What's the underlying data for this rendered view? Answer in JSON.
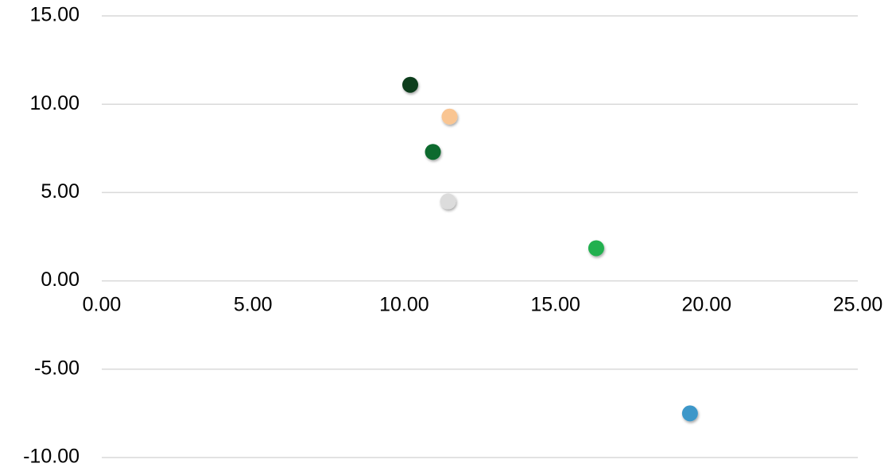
{
  "chart_data": {
    "type": "scatter",
    "title": "",
    "xlabel": "",
    "ylabel": "",
    "xlim": [
      0,
      25
    ],
    "ylim": [
      -10,
      15
    ],
    "x_ticks": [
      0,
      5,
      10,
      15,
      20,
      25
    ],
    "y_ticks": [
      -10,
      -5,
      0,
      5,
      10,
      15
    ],
    "x_tick_labels": [
      "0.00",
      "5.00",
      "10.00",
      "15.00",
      "20.00",
      "25.00"
    ],
    "y_tick_labels": [
      "-10.00",
      "-5.00",
      "0.00",
      "5.00",
      "10.00",
      "15.00"
    ],
    "x_axis_crosses_at": 0,
    "gridlines": "horizontal",
    "legend": "none",
    "points": [
      {
        "x": 10.2,
        "y": 11.1,
        "color": "#0b3d1c"
      },
      {
        "x": 11.5,
        "y": 9.3,
        "color": "#f9c592"
      },
      {
        "x": 10.95,
        "y": 7.3,
        "color": "#0e6b2e"
      },
      {
        "x": 11.45,
        "y": 4.5,
        "color": "#dcdcdc"
      },
      {
        "x": 16.35,
        "y": 1.85,
        "color": "#23b04f"
      },
      {
        "x": 19.45,
        "y": -7.5,
        "color": "#3d97c9"
      }
    ]
  }
}
